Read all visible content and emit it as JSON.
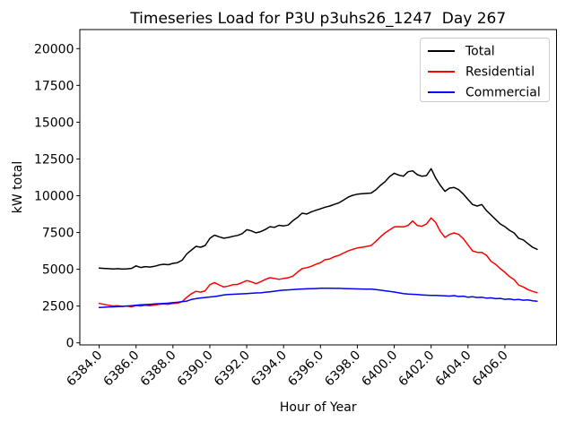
{
  "figure": {
    "title": "Timeseries Load for P3U p3uhs26_1247  Day 267",
    "xlabel": "Hour of Year",
    "ylabel": "kW total",
    "background": "#ffffff"
  },
  "legend": {
    "position": "upper right",
    "entries": [
      {
        "label": "Total",
        "color": "#000000"
      },
      {
        "label": "Residential",
        "color": "#ff0000"
      },
      {
        "label": "Commercial",
        "color": "#0000ff"
      }
    ]
  },
  "chart_data": {
    "type": "line",
    "title": "Timeseries Load for P3U p3uhs26_1247  Day 267",
    "xlabel": "Hour of Year",
    "ylabel": "kW total",
    "grid": false,
    "legend_position": "upper right",
    "xlim": [
      6382.95,
      6408.8
    ],
    "ylim": [
      -140,
      21296
    ],
    "x_ticks": [
      6384,
      6386,
      6388,
      6390,
      6392,
      6394,
      6396,
      6398,
      6400,
      6402,
      6404,
      6406
    ],
    "x_tick_labels": [
      "6384.0",
      "6386.0",
      "6388.0",
      "6390.0",
      "6392.0",
      "6394.0",
      "6396.0",
      "6398.0",
      "6400.0",
      "6402.0",
      "6404.0",
      "6406.0"
    ],
    "y_ticks": [
      0,
      2500,
      5000,
      7500,
      10000,
      12500,
      15000,
      17500,
      20000
    ],
    "y_tick_labels": [
      "0",
      "2500",
      "5000",
      "7500",
      "10000",
      "12500",
      "15000",
      "17500",
      "20000"
    ],
    "x_start": 6384.0,
    "x_step": 0.25,
    "x": [
      6384.0,
      6384.25,
      6384.5,
      6384.75,
      6385.0,
      6385.25,
      6385.5,
      6385.75,
      6386.0,
      6386.25,
      6386.5,
      6386.75,
      6387.0,
      6387.25,
      6387.5,
      6387.75,
      6388.0,
      6388.25,
      6388.5,
      6388.75,
      6389.0,
      6389.25,
      6389.5,
      6389.75,
      6390.0,
      6390.25,
      6390.5,
      6390.75,
      6391.0,
      6391.25,
      6391.5,
      6391.75,
      6392.0,
      6392.25,
      6392.5,
      6392.75,
      6393.0,
      6393.25,
      6393.5,
      6393.75,
      6394.0,
      6394.25,
      6394.5,
      6394.75,
      6395.0,
      6395.25,
      6395.5,
      6395.75,
      6396.0,
      6396.25,
      6396.5,
      6396.75,
      6397.0,
      6397.25,
      6397.5,
      6397.75,
      6398.0,
      6398.25,
      6398.5,
      6398.75,
      6399.0,
      6399.25,
      6399.5,
      6399.75,
      6400.0,
      6400.25,
      6400.5,
      6400.75,
      6401.0,
      6401.25,
      6401.5,
      6401.75,
      6402.0,
      6402.25,
      6402.5,
      6402.75,
      6403.0,
      6403.25,
      6403.5,
      6403.75,
      6404.0,
      6404.25,
      6404.5,
      6404.75,
      6405.0,
      6405.25,
      6405.5,
      6405.75,
      6406.0,
      6406.25,
      6406.5,
      6406.75,
      6407.0,
      6407.25,
      6407.5,
      6407.75
    ],
    "series": [
      {
        "name": "Total",
        "color": "#000000",
        "values": [
          5080,
          5060,
          5040,
          5020,
          5040,
          5010,
          5030,
          5060,
          5230,
          5120,
          5180,
          5150,
          5200,
          5290,
          5340,
          5310,
          5400,
          5450,
          5620,
          6050,
          6300,
          6560,
          6500,
          6620,
          7100,
          7320,
          7210,
          7110,
          7160,
          7240,
          7300,
          7420,
          7690,
          7610,
          7480,
          7560,
          7700,
          7890,
          7850,
          7990,
          7950,
          8010,
          8300,
          8520,
          8810,
          8760,
          8900,
          9010,
          9110,
          9220,
          9300,
          9410,
          9520,
          9700,
          9900,
          10030,
          10100,
          10140,
          10160,
          10180,
          10400,
          10700,
          10950,
          11300,
          11530,
          11400,
          11330,
          11630,
          11690,
          11430,
          11330,
          11370,
          11840,
          11200,
          10700,
          10300,
          10520,
          10560,
          10410,
          10110,
          9750,
          9400,
          9300,
          9400,
          8990,
          8690,
          8390,
          8080,
          7900,
          7650,
          7470,
          7100,
          7000,
          6750,
          6500,
          6360
        ]
      },
      {
        "name": "Residential",
        "color": "#ff0000",
        "values": [
          2680,
          2620,
          2560,
          2500,
          2530,
          2480,
          2500,
          2450,
          2540,
          2500,
          2560,
          2520,
          2570,
          2620,
          2650,
          2620,
          2680,
          2700,
          2800,
          3100,
          3340,
          3500,
          3440,
          3540,
          3950,
          4100,
          3940,
          3800,
          3860,
          3950,
          3970,
          4100,
          4230,
          4150,
          4020,
          4150,
          4300,
          4430,
          4380,
          4320,
          4380,
          4420,
          4530,
          4800,
          5040,
          5110,
          5200,
          5340,
          5450,
          5650,
          5700,
          5850,
          5950,
          6100,
          6250,
          6360,
          6450,
          6500,
          6550,
          6620,
          6900,
          7200,
          7470,
          7680,
          7880,
          7900,
          7880,
          7980,
          8280,
          7980,
          7920,
          8080,
          8490,
          8180,
          7570,
          7170,
          7370,
          7470,
          7370,
          7070,
          6660,
          6250,
          6150,
          6150,
          5950,
          5540,
          5340,
          5040,
          4800,
          4500,
          4300,
          3920,
          3800,
          3620,
          3500,
          3410
        ]
      },
      {
        "name": "Commercial",
        "color": "#0000ff",
        "values": [
          2400,
          2420,
          2440,
          2450,
          2460,
          2480,
          2500,
          2530,
          2550,
          2580,
          2600,
          2620,
          2640,
          2660,
          2680,
          2700,
          2730,
          2760,
          2800,
          2840,
          2950,
          3000,
          3050,
          3080,
          3120,
          3150,
          3200,
          3250,
          3280,
          3300,
          3320,
          3330,
          3350,
          3370,
          3390,
          3400,
          3440,
          3470,
          3510,
          3550,
          3580,
          3600,
          3620,
          3640,
          3660,
          3670,
          3680,
          3690,
          3710,
          3715,
          3710,
          3700,
          3700,
          3690,
          3680,
          3670,
          3665,
          3660,
          3655,
          3650,
          3620,
          3580,
          3540,
          3500,
          3450,
          3400,
          3350,
          3310,
          3300,
          3280,
          3260,
          3240,
          3230,
          3220,
          3210,
          3190,
          3180,
          3210,
          3150,
          3170,
          3100,
          3130,
          3080,
          3100,
          3040,
          3060,
          3000,
          3020,
          2960,
          2980,
          2930,
          2950,
          2900,
          2920,
          2860,
          2830
        ]
      }
    ]
  }
}
